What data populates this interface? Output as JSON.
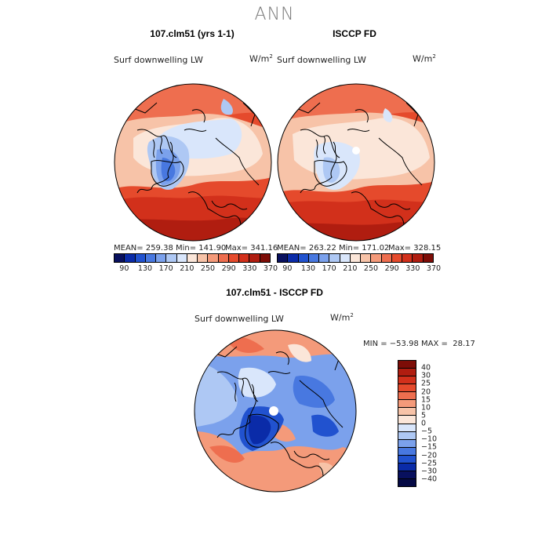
{
  "season": "ANN",
  "variable": "Surf downwelling LW",
  "units_base": "W/m",
  "units_exp": "2",
  "panels": [
    {
      "title": "107.clm51 (yrs 1-1)",
      "mean": "MEAN= 259.38",
      "min": "Min= 141.90",
      "max": "Max= 341.16"
    },
    {
      "title": "ISCCP FD",
      "mean": "MEAN= 263.22",
      "min": "Min= 171.02",
      "max": "Max= 328.15"
    }
  ],
  "abs_colorbar": {
    "labels": [
      "90",
      "130",
      "170",
      "210",
      "250",
      "290",
      "330",
      "370"
    ],
    "colors": [
      "#08105e",
      "#0a2ba8",
      "#2152cf",
      "#4878e0",
      "#7ba1ec",
      "#aec8f4",
      "#d9e6fb",
      "#fbe6d9",
      "#f7c3a8",
      "#f49a7a",
      "#ee6e4f",
      "#e54a2c",
      "#d2301b",
      "#b01d10",
      "#7d0d07"
    ]
  },
  "diff": {
    "title": "107.clm51 - ISCCP FD",
    "stats": "MIN = −53.98 MAX =  28.17",
    "colorbar_labels": [
      "40",
      "30",
      "25",
      "20",
      "15",
      "10",
      "5",
      "0",
      "−5",
      "−10",
      "−15",
      "−20",
      "−25",
      "−30",
      "−40"
    ],
    "colors": [
      "#7d0d07",
      "#b01d10",
      "#d2301b",
      "#e54a2c",
      "#ee6e4f",
      "#f49a7a",
      "#f7c3a8",
      "#fbe6d9",
      "#d9e6fb",
      "#aec8f4",
      "#7ba1ec",
      "#4878e0",
      "#2152cf",
      "#0a2ba8",
      "#08105e",
      "#050a45"
    ]
  }
}
